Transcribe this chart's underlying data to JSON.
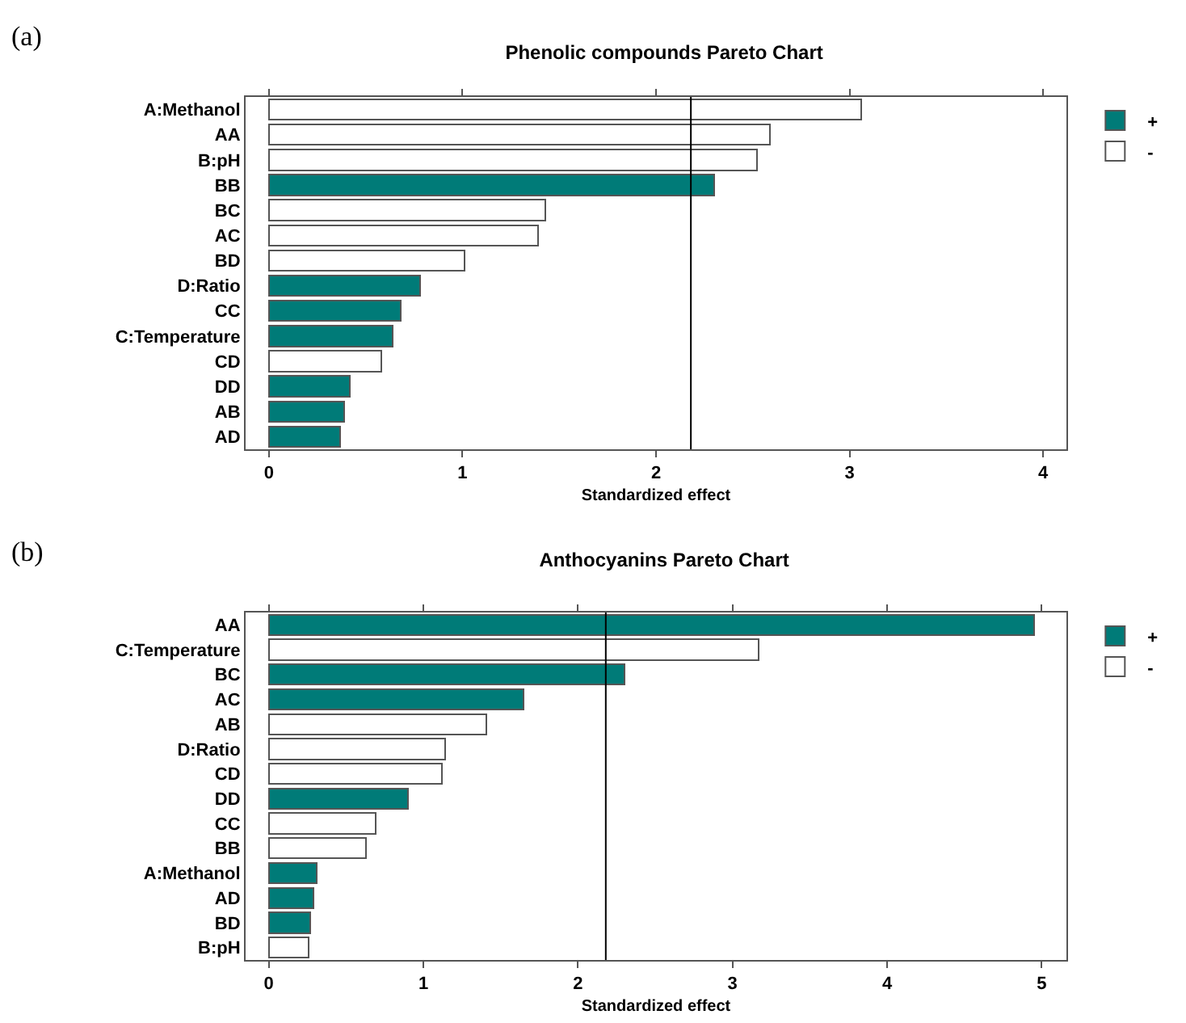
{
  "chart_data": [
    {
      "type": "bar",
      "orientation": "horizontal",
      "stacked": true,
      "title": "Phenolic compounds Pareto Chart",
      "xlabel": "Standardized effect",
      "annotations": [
        "(a)"
      ],
      "categories": [
        "A:Methanol",
        "AA",
        "B:pH",
        "BB",
        "BC",
        "AC",
        "BD",
        "D:Ratio",
        "CC",
        "C:Temperature",
        "CD",
        "DD",
        "AB",
        "AD"
      ],
      "series": [
        {
          "name": "+",
          "color": "#007b78",
          "values": [
            null,
            null,
            null,
            2.3,
            null,
            null,
            null,
            0.78,
            0.68,
            0.64,
            null,
            0.42,
            0.39,
            0.37
          ]
        },
        {
          "name": "-",
          "color": "#ffffff",
          "values": [
            3.06,
            2.59,
            2.52,
            null,
            1.43,
            1.39,
            1.01,
            null,
            null,
            null,
            0.58,
            null,
            null,
            null
          ]
        }
      ],
      "xlim": [
        -0.12,
        4.12
      ],
      "xticks": [
        0,
        1,
        2,
        3,
        4
      ],
      "ref_lines": [
        {
          "axis": "x",
          "value": 2.18,
          "color": "#000000"
        }
      ],
      "grid": false,
      "legend": "top right"
    },
    {
      "type": "bar",
      "orientation": "horizontal",
      "stacked": true,
      "title": "Anthocyanins Pareto Chart",
      "xlabel": "Standardized effect",
      "annotations": [
        "(b)"
      ],
      "categories": [
        "AA",
        "C:Temperature",
        "BC",
        "AC",
        "AB",
        "D:Ratio",
        "CD",
        "DD",
        "CC",
        "BB",
        "A:Methanol",
        "AD",
        "BD",
        "B:pH"
      ],
      "series": [
        {
          "name": "+",
          "color": "#007b78",
          "values": [
            4.95,
            null,
            2.3,
            1.65,
            null,
            null,
            null,
            0.9,
            null,
            null,
            0.31,
            0.29,
            0.27,
            null
          ]
        },
        {
          "name": "-",
          "color": "#ffffff",
          "values": [
            null,
            3.17,
            null,
            null,
            1.41,
            1.14,
            1.12,
            null,
            0.69,
            0.63,
            null,
            null,
            null,
            0.26
          ]
        }
      ],
      "xlim": [
        -0.15,
        5.16
      ],
      "xticks": [
        0,
        1,
        2,
        3,
        4,
        5
      ],
      "ref_lines": [
        {
          "axis": "x",
          "value": 2.18,
          "color": "#000000"
        }
      ],
      "grid": false,
      "legend": "top right"
    }
  ]
}
